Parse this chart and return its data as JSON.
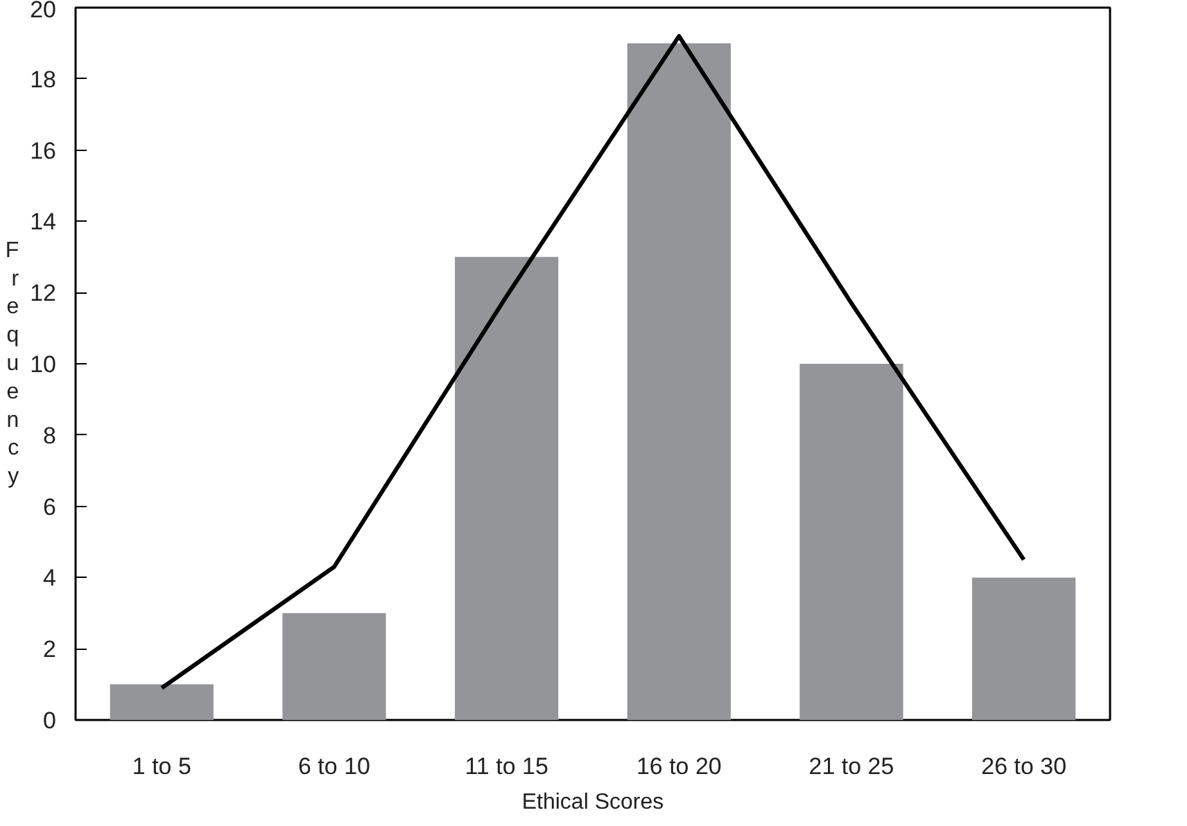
{
  "chart_data": {
    "type": "bar",
    "xlabel": "Ethical Scores",
    "ylabel": "Frequency",
    "categories": [
      "1 to 5",
      "6 to 10",
      "11 to 15",
      "16 to 20",
      "21 to 25",
      "26 to 30"
    ],
    "series": [
      {
        "color": "#939598",
        "values": [
          1,
          3,
          13,
          19,
          10,
          4
        ]
      },
      {
        "type": "line",
        "color": "#000000",
        "values": [
          0.9,
          4.3,
          11.9,
          19.2,
          11.7,
          4.5
        ]
      }
    ],
    "ylim": [
      0,
      20
    ],
    "yticks": [
      0,
      2,
      4,
      6,
      8,
      10,
      12,
      14,
      16,
      18,
      20
    ],
    "grid": false,
    "marker": "none",
    "line_style": "solid"
  }
}
